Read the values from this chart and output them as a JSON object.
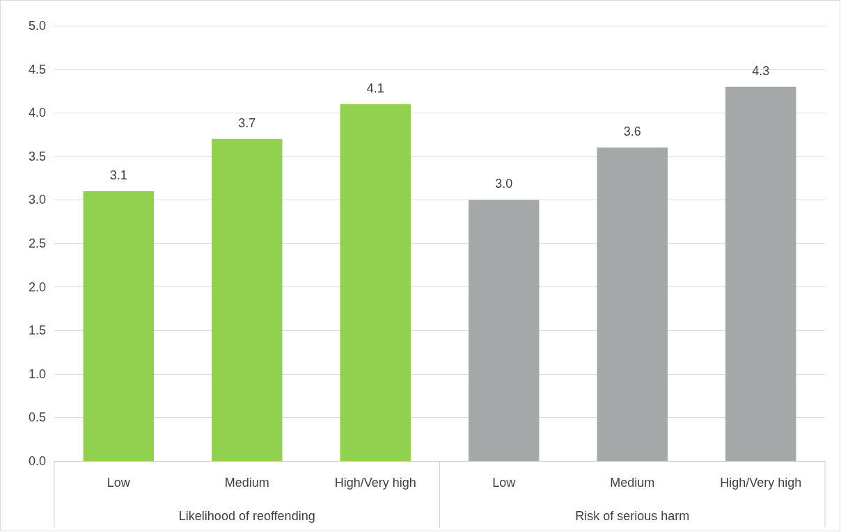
{
  "chart_data": {
    "type": "bar",
    "categories": [
      "Low",
      "Medium",
      "High/Very high",
      "Low",
      "Medium",
      "High/Very high"
    ],
    "values": [
      3.1,
      3.7,
      4.1,
      3.0,
      3.6,
      4.3
    ],
    "value_labels": [
      "3.1",
      "3.7",
      "4.1",
      "3.0",
      "3.6",
      "4.3"
    ],
    "colors": [
      "#92d050",
      "#92d050",
      "#92d050",
      "#a5a8a8",
      "#a5a8a8",
      "#a5a8a8"
    ],
    "ylim": [
      0,
      5
    ],
    "yticks": [
      {
        "value": 0,
        "label": "0.0"
      },
      {
        "value": 0.5,
        "label": "0.5"
      },
      {
        "value": 1,
        "label": "1.0"
      },
      {
        "value": 1.5,
        "label": "1.5"
      },
      {
        "value": 2,
        "label": "2.0"
      },
      {
        "value": 2.5,
        "label": "2.5"
      },
      {
        "value": 3,
        "label": "3.0"
      },
      {
        "value": 3.5,
        "label": "3.5"
      },
      {
        "value": 4,
        "label": "4.0"
      },
      {
        "value": 4.5,
        "label": "4.5"
      },
      {
        "value": 5,
        "label": "5.0"
      }
    ],
    "grid": "y",
    "annotations": [
      "Likelihood of reoffending",
      "Risk of serious harm"
    ]
  }
}
